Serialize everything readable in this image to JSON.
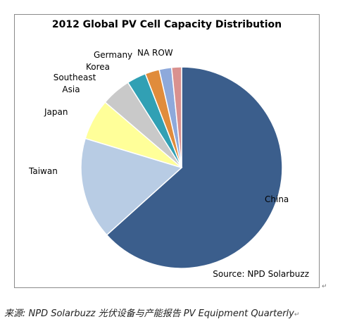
{
  "chart_data": {
    "type": "pie",
    "title": "2012 Global PV Cell Capacity Distribution",
    "categories": [
      "China",
      "Taiwan",
      "Japan",
      "Southeast Asia",
      "Korea",
      "Germany",
      "NA",
      "ROW"
    ],
    "values": [
      63.6,
      16.4,
      6.6,
      4.8,
      3.1,
      2.3,
      2.0,
      1.6
    ],
    "colors": [
      "#3b5e8c",
      "#b8cce4",
      "#ffff99",
      "#c9c9c9",
      "#31a0b4",
      "#e08c3c",
      "#8ea9db",
      "#d9918f"
    ],
    "start_angle_deg": 0,
    "direction": "clockwise",
    "source": "Source: NPD Solarbuzz"
  },
  "caption": {
    "text": "来源: NPD Solarbuzz 光伏设备与产能报告 PV Equipment Quarterly",
    "mark": "↵"
  },
  "frame_mark": "↵"
}
